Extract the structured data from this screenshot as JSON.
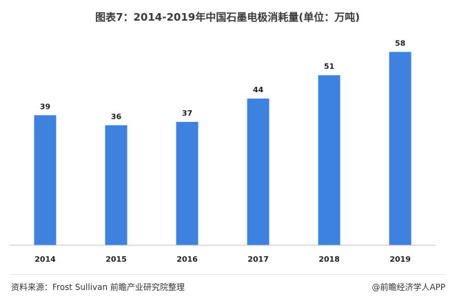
{
  "chart_data": {
    "type": "bar",
    "title": "图表7：2014-2019年中国石墨电极消耗量(单位：万吨)",
    "categories": [
      "2014",
      "2015",
      "2016",
      "2017",
      "2018",
      "2019"
    ],
    "values": [
      39,
      36,
      37,
      44,
      51,
      58
    ],
    "ylim": [
      0,
      62
    ],
    "grid": false,
    "legend": "none",
    "colors": {
      "bar": "#3e82e0",
      "axis": "#bfbfbf",
      "text": "#222222"
    }
  },
  "footer": {
    "source": "资料来源：Frost Sullivan  前瞻产业研究院整理",
    "credit": "@前瞻经济学人APP"
  }
}
